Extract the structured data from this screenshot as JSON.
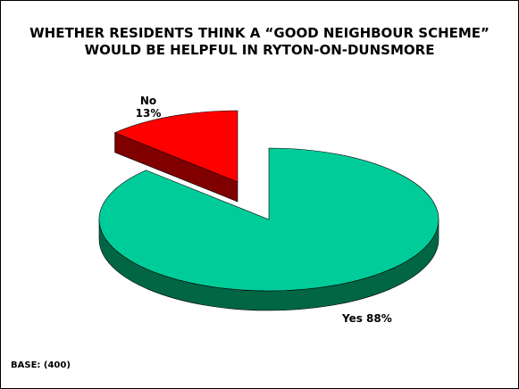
{
  "chart_data": {
    "type": "pie",
    "title": "WHETHER RESIDENTS THINK A “GOOD NEIGHBOUR SCHEME” WOULD BE HELPFUL IN RYTON-ON-DUNSMORE",
    "title_lines": [
      "WHETHER RESIDENTS THINK A “GOOD NEIGHBOUR SCHEME”",
      "WOULD BE HELPFUL IN RYTON-ON-DUNSMORE"
    ],
    "slices": [
      {
        "label": "Yes",
        "value": 88,
        "display": "Yes 88%",
        "color": "#00CC99",
        "side_color": "#006644"
      },
      {
        "label": "No",
        "value": 13,
        "display_name": "No",
        "display_pct": "13%",
        "color": "#FF0000",
        "side_color": "#800000",
        "exploded": true
      }
    ],
    "base": "BASE: (400)"
  }
}
